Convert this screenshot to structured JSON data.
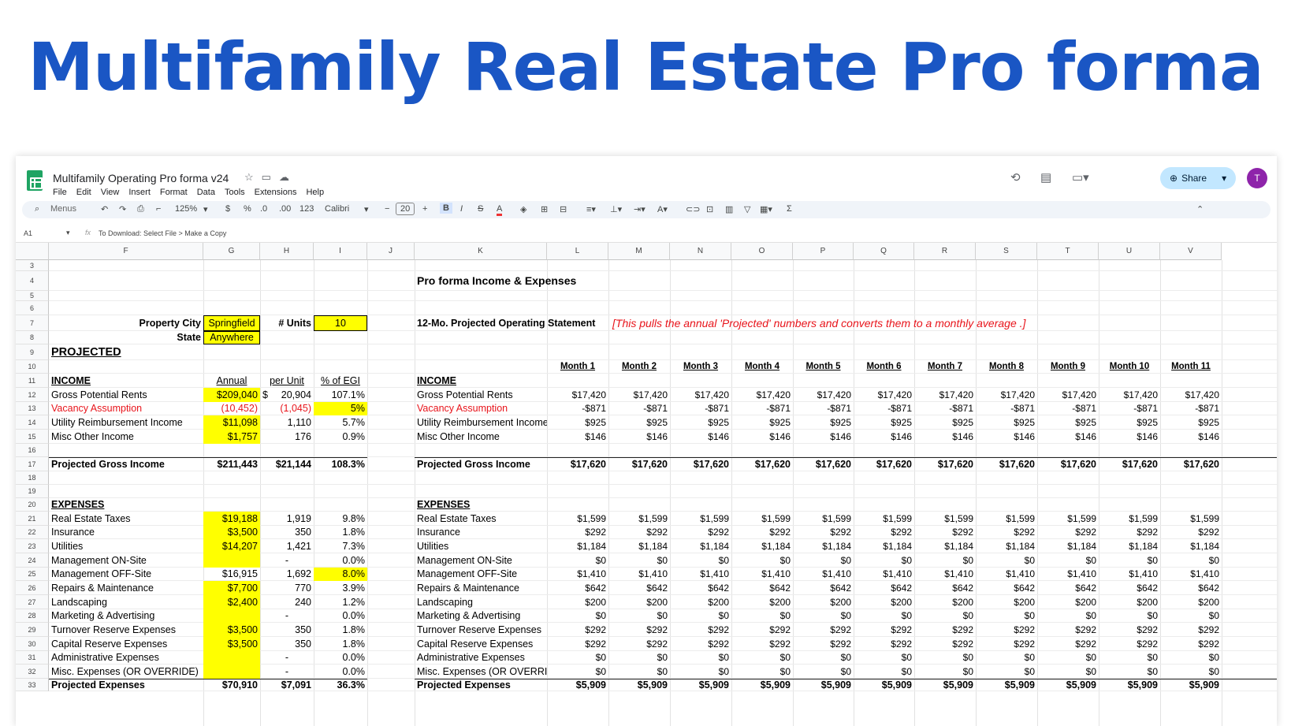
{
  "headline": "Multifamily Real Estate Pro forma",
  "app": {
    "title": "Multifamily Operating Pro forma v24",
    "menus": [
      "File",
      "Edit",
      "View",
      "Insert",
      "Format",
      "Data",
      "Tools",
      "Extensions",
      "Help"
    ],
    "share": "Share",
    "avatar": "T"
  },
  "toolbar": {
    "search": "Menus",
    "zoom": "125%",
    "dollar": "$",
    "pct": "%",
    "dec_less": ".0",
    "dec_more": ".00",
    "fmt": "123",
    "font": "Calibri",
    "size": "20"
  },
  "formula_bar": {
    "ref": "A1",
    "fx": "fx",
    "content": "To Download: Select File > Make a Copy"
  },
  "colors": {
    "accent_title": "#1a56c4",
    "yellow_input": "#ffff00",
    "red_text": "#e8141b",
    "share_bg": "#c2e7ff",
    "avatar": "#8e24aa"
  },
  "columns": [
    "F",
    "G",
    "H",
    "I",
    "J",
    "K",
    "L",
    "M",
    "N",
    "O",
    "P",
    "Q",
    "R",
    "S",
    "T",
    "U",
    "V"
  ],
  "rows": [
    "3",
    "4",
    "5",
    "6",
    "7",
    "8",
    "9",
    "10",
    "11",
    "12",
    "13",
    "14",
    "15",
    "16",
    "17",
    "18",
    "19",
    "20",
    "21",
    "22",
    "23",
    "24",
    "25",
    "26",
    "27",
    "28",
    "29",
    "30",
    "31",
    "32",
    "33"
  ],
  "sheet": {
    "pf_title": "Pro forma Income & Expenses",
    "prop_city_label": "Property City",
    "prop_city": "Springfield",
    "units_label": "# Units",
    "units": "10",
    "state_label": "State",
    "state": "Anywhere",
    "stmt_label": "12-Mo. Projected Operating Statement",
    "stmt_note": "[This pulls the annual 'Projected' numbers and converts them to a monthly average .]",
    "projected": "PROJECTED",
    "months": [
      "Month 1",
      "Month 2",
      "Month 3",
      "Month 4",
      "Month 5",
      "Month 6",
      "Month 7",
      "Month 8",
      "Month 9",
      "Month 10",
      "Month 11"
    ],
    "hdr_annual": "Annual",
    "hdr_unit": "per Unit",
    "hdr_pct": "% of EGI",
    "income_label": "INCOME",
    "expenses_label": "EXPENSES",
    "income": [
      {
        "label": "Gross Potential Rents",
        "k": "Gross Potential Rents",
        "annual": "$209,040",
        "unit_sym": "$",
        "unit": "20,904",
        "pct": "107.1%",
        "m": "$17,420",
        "ay": true,
        "py": false,
        "red": false
      },
      {
        "label": "Vacancy Assumption",
        "k": "Vacancy Assumption",
        "annual": "(10,452)",
        "unit_sym": "",
        "unit": "(1,045)",
        "pct": "5%",
        "m": "-$871",
        "ay": false,
        "py": true,
        "red": true
      },
      {
        "label": "Utility Reimbursement Income",
        "k": "Utility Reimbursement Income",
        "annual": "$11,098",
        "unit_sym": "",
        "unit": "1,110",
        "pct": "5.7%",
        "m": "$925",
        "ay": true,
        "py": false,
        "red": false
      },
      {
        "label": "Misc Other Income",
        "k": "Misc Other Income",
        "annual": "$1,757",
        "unit_sym": "",
        "unit": "176",
        "pct": "0.9%",
        "m": "$146",
        "ay": true,
        "py": false,
        "red": false
      }
    ],
    "income_total": {
      "label": "Projected Gross Income",
      "annual": "$211,443",
      "unit": "$21,144",
      "pct": "108.3%",
      "m": "$17,620"
    },
    "expenses": [
      {
        "label": "Real Estate Taxes",
        "k": "Real Estate Taxes",
        "annual": "$19,188",
        "unit": "1,919",
        "pct": "9.8%",
        "m": "$1,599",
        "ay": true,
        "py": false
      },
      {
        "label": "Insurance",
        "k": "Insurance",
        "annual": "$3,500",
        "unit": "350",
        "pct": "1.8%",
        "m": "$292",
        "ay": true,
        "py": false
      },
      {
        "label": "Utilities",
        "k": "Utilities",
        "annual": "$14,207",
        "unit": "1,421",
        "pct": "7.3%",
        "m": "$1,184",
        "ay": true,
        "py": false
      },
      {
        "label": "Management ON-Site",
        "k": "Management ON-Site",
        "annual": "",
        "unit": "-",
        "pct": "0.0%",
        "m": "$0",
        "ay": true,
        "py": false
      },
      {
        "label": "Management OFF-Site",
        "k": "Management OFF-Site",
        "annual": "$16,915",
        "unit": "1,692",
        "pct": "8.0%",
        "m": "$1,410",
        "ay": false,
        "py": true
      },
      {
        "label": "Repairs & Maintenance",
        "k": "Repairs & Maintenance",
        "annual": "$7,700",
        "unit": "770",
        "pct": "3.9%",
        "m": "$642",
        "ay": true,
        "py": false
      },
      {
        "label": "Landscaping",
        "k": "Landscaping",
        "annual": "$2,400",
        "unit": "240",
        "pct": "1.2%",
        "m": "$200",
        "ay": true,
        "py": false
      },
      {
        "label": "Marketing & Advertising",
        "k": "Marketing & Advertising",
        "annual": "",
        "unit": "-",
        "pct": "0.0%",
        "m": "$0",
        "ay": true,
        "py": false
      },
      {
        "label": "Turnover Reserve Expenses",
        "k": "Turnover Reserve Expenses",
        "annual": "$3,500",
        "unit": "350",
        "pct": "1.8%",
        "m": "$292",
        "ay": true,
        "py": false
      },
      {
        "label": "Capital Reserve Expenses",
        "k": "Capital Reserve Expenses",
        "annual": "$3,500",
        "unit": "350",
        "pct": "1.8%",
        "m": "$292",
        "ay": true,
        "py": false
      },
      {
        "label": "Administrative Expenses",
        "k": "Administrative Expenses",
        "annual": "",
        "unit": "-",
        "pct": "0.0%",
        "m": "$0",
        "ay": true,
        "py": false
      },
      {
        "label": "Misc. Expenses (OR OVERRIDE)",
        "k": "Misc. Expenses (OR OVERRIDE",
        "annual": "",
        "unit": "-",
        "pct": "0.0%",
        "m": "$0",
        "ay": true,
        "py": false
      }
    ],
    "expense_total": {
      "label": "Projected Expenses",
      "annual": "$70,910",
      "unit": "$7,091",
      "pct": "36.3%",
      "m": "$5,909"
    }
  }
}
